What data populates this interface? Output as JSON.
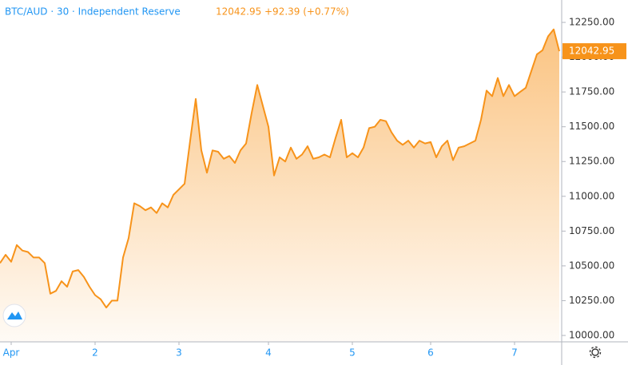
{
  "chart_data": {
    "type": "area",
    "title": "BTC/AUD · 30 · Independent Reserve",
    "price": "12042.95",
    "change": "+92.39 (+0.77%)",
    "color": "#f7931a",
    "categories": [
      null,
      null,
      "Apr",
      null,
      null,
      null,
      null,
      null,
      null,
      null,
      null,
      null,
      null,
      null,
      null,
      null,
      null,
      "2",
      null,
      null,
      null,
      null,
      null,
      null,
      null,
      null,
      null,
      null,
      null,
      null,
      null,
      null,
      "3",
      null,
      null,
      null,
      null,
      null,
      null,
      null,
      null,
      null,
      null,
      null,
      null,
      null,
      null,
      null,
      "4",
      null,
      null,
      null,
      null,
      null,
      null,
      null,
      null,
      null,
      null,
      null,
      null,
      null,
      null,
      "5",
      null,
      null,
      null,
      null,
      null,
      null,
      null,
      null,
      null,
      null,
      null,
      null,
      null,
      "6",
      null,
      null,
      null,
      null,
      null,
      null,
      null,
      null,
      null,
      null,
      null,
      null,
      null,
      null,
      "7",
      null,
      null,
      null,
      null,
      null,
      null,
      null,
      null
    ],
    "values": [
      10520,
      10580,
      10530,
      10650,
      10610,
      10600,
      10560,
      10560,
      10520,
      10300,
      10320,
      10390,
      10350,
      10460,
      10470,
      10420,
      10350,
      10290,
      10260,
      10200,
      10250,
      10250,
      10560,
      10700,
      10950,
      10930,
      10900,
      10920,
      10880,
      10950,
      10920,
      11010,
      11050,
      11090,
      11400,
      11700,
      11330,
      11170,
      11330,
      11320,
      11270,
      11290,
      11240,
      11330,
      11380,
      11600,
      11800,
      11650,
      11500,
      11150,
      11280,
      11250,
      11350,
      11270,
      11300,
      11360,
      11270,
      11280,
      11300,
      11280,
      11420,
      11550,
      11280,
      11310,
      11280,
      11350,
      11490,
      11500,
      11550,
      11540,
      11460,
      11400,
      11370,
      11400,
      11350,
      11400,
      11380,
      11390,
      11280,
      11360,
      11400,
      11260,
      11350,
      11360,
      11380,
      11400,
      11550,
      11760,
      11720,
      11850,
      11720,
      11800,
      11720,
      11750,
      11780,
      11900,
      12020,
      12050,
      12150,
      12200,
      12042.95
    ],
    "ylim": [
      9954,
      12411
    ],
    "yticks": [
      {
        "value": 10000,
        "label": "10000.00"
      },
      {
        "value": 10250,
        "label": "10250.00"
      },
      {
        "value": 10500,
        "label": "10500.00"
      },
      {
        "value": 10750,
        "label": "10750.00"
      },
      {
        "value": 11000,
        "label": "11000.00"
      },
      {
        "value": 11250,
        "label": "11250.00"
      },
      {
        "value": 11500,
        "label": "11500.00"
      },
      {
        "value": 11750,
        "label": "11750.00"
      },
      {
        "value": 12000,
        "label": "12000.00"
      },
      {
        "value": 12250,
        "label": "12250.00"
      }
    ]
  }
}
